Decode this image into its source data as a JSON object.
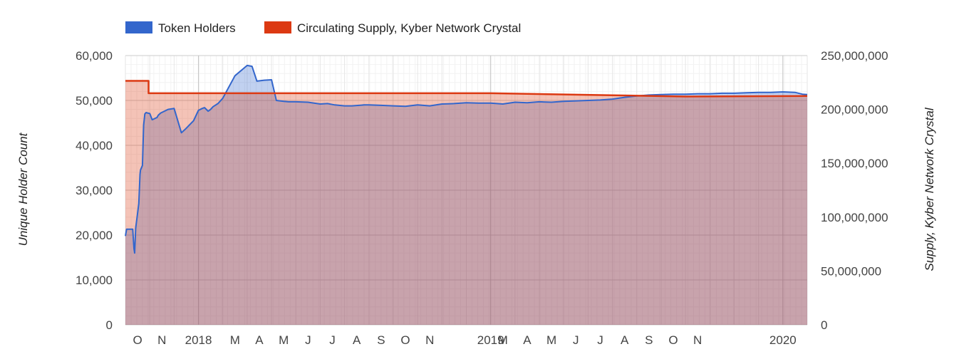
{
  "chart_data": {
    "type": "area",
    "title": "",
    "legend": [
      {
        "name": "Token Holders",
        "color": "#3366cc"
      },
      {
        "name": "Circulating Supply, Kyber Network Crystal",
        "color": "#dc3912"
      }
    ],
    "x_labels": [
      "O",
      "N",
      "2018",
      "M",
      "A",
      "M",
      "J",
      "J",
      "A",
      "S",
      "O",
      "N",
      "2019",
      "M",
      "A",
      "M",
      "J",
      "J",
      "A",
      "S",
      "O",
      "N",
      "2020"
    ],
    "x_range_months": [
      0,
      28
    ],
    "left_axis": {
      "label": "Unique Holder Count",
      "range": [
        0,
        60000
      ],
      "ticks": [
        "0",
        "10,000",
        "20,000",
        "30,000",
        "40,000",
        "50,000",
        "60,000"
      ]
    },
    "right_axis": {
      "label": "Supply, Kyber Network Crystal",
      "range": [
        0,
        250000000
      ],
      "ticks": [
        "0",
        "50,000,000",
        "100,000,000",
        "150,000,000",
        "200,000,000",
        "250,000,000"
      ]
    },
    "series": [
      {
        "name": "Token Holders",
        "axis": "left",
        "x_months": [
          0.0,
          0.05,
          0.3,
          0.35,
          0.38,
          0.42,
          0.55,
          0.6,
          0.62,
          0.7,
          0.75,
          0.8,
          0.85,
          0.9,
          1.0,
          1.1,
          1.3,
          1.35,
          1.45,
          1.6,
          1.75,
          2.0,
          2.3,
          2.5,
          2.8,
          3.0,
          3.15,
          3.25,
          3.4,
          3.5,
          3.6,
          3.8,
          4.0,
          4.5,
          5.0,
          5.2,
          5.4,
          5.7,
          6.0,
          6.2,
          6.5,
          6.7,
          7.0,
          7.5,
          8.0,
          8.3,
          8.5,
          8.6,
          9.0,
          9.3,
          9.6,
          9.8,
          10.0,
          10.5,
          11.0,
          11.5,
          12.0,
          12.5,
          13.0,
          13.5,
          14.0,
          14.5,
          15.0,
          15.5,
          16.0,
          16.5,
          17.0,
          17.5,
          18.0,
          18.5,
          19.0,
          19.5,
          20.0,
          20.5,
          21.0,
          21.5,
          22.0,
          22.5,
          23.0,
          23.5,
          24.0,
          24.5,
          25.0,
          25.5,
          26.0,
          26.5,
          27.0,
          27.5,
          27.8,
          28.0
        ],
        "values": [
          19800,
          21300,
          21300,
          17000,
          16000,
          21500,
          27000,
          33500,
          34500,
          35500,
          44500,
          47000,
          47300,
          47200,
          47100,
          45700,
          46200,
          46700,
          47200,
          47600,
          48000,
          48200,
          42800,
          43800,
          45500,
          47800,
          48200,
          48400,
          47600,
          48000,
          48600,
          49300,
          50500,
          55500,
          57800,
          57600,
          54300,
          54500,
          54600,
          50000,
          49800,
          49700,
          49700,
          49600,
          49200,
          49300,
          49100,
          49000,
          48800,
          48800,
          48900,
          49000,
          49000,
          48900,
          48800,
          48700,
          49000,
          48800,
          49200,
          49300,
          49500,
          49400,
          49400,
          49200,
          49600,
          49500,
          49700,
          49600,
          49800,
          49900,
          50000,
          50100,
          50300,
          50700,
          51000,
          51200,
          51300,
          51400,
          51400,
          51500,
          51500,
          51600,
          51600,
          51700,
          51800,
          51800,
          51900,
          51800,
          51400,
          51300
        ]
      },
      {
        "name": "Circulating Supply, Kyber Network Crystal",
        "axis": "right",
        "x_months": [
          0.0,
          0.95,
          0.95,
          15.0,
          23.0,
          28.0
        ],
        "values": [
          226500000,
          226500000,
          215000000,
          215000000,
          212000000,
          212500000
        ]
      }
    ]
  }
}
